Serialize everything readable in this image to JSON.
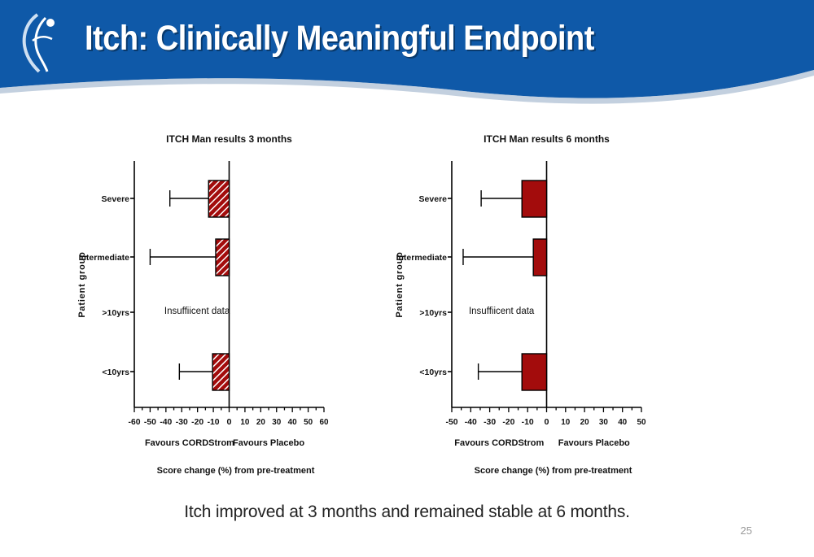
{
  "slide": {
    "title": "Itch: Clinically Meaningful Endpoint",
    "caption": "Itch improved at 3 months and remained stable at  6 months.",
    "page_number": "25",
    "colors": {
      "banner": "#0f59a8",
      "bar_fill": "#a30c0c",
      "hatch": "#ffffff",
      "text": "#111111"
    }
  },
  "chart_data": [
    {
      "type": "bar",
      "orientation": "horizontal",
      "title": "ITCH Man results 3 months",
      "ylabel": "Patient group",
      "xlabel": "Score change (%) from pre-treatment",
      "left_label": "Favours CORDStrom",
      "right_label": "Favours Placebo",
      "xlim": [
        -60,
        60
      ],
      "xticks": [
        -60,
        -50,
        -40,
        -30,
        -20,
        -10,
        0,
        10,
        20,
        30,
        40,
        50,
        60
      ],
      "minor_step": 5,
      "categories": [
        "Severe",
        "Intermediate",
        ">10yrs",
        "<10yrs"
      ],
      "values": [
        -13,
        -8.5,
        null,
        -10.5
      ],
      "error_low": [
        -37.5,
        -50,
        null,
        -31.5
      ],
      "fill_pattern": "hatched",
      "annotation": {
        "text": "Insuffiicent data",
        "category": ">10yrs"
      }
    },
    {
      "type": "bar",
      "orientation": "horizontal",
      "title": "ITCH Man results 6 months",
      "ylabel": "Patient group",
      "xlabel": "Score change (%) from pre-treatment",
      "left_label": "Favours CORDStrom",
      "right_label": "Favours Placebo",
      "xlim": [
        -50,
        50
      ],
      "xticks": [
        -50,
        -40,
        -30,
        -20,
        -10,
        0,
        10,
        20,
        30,
        40,
        50
      ],
      "minor_step": 5,
      "categories": [
        "Severe",
        "Intermediate",
        ">10yrs",
        "<10yrs"
      ],
      "values": [
        -13,
        -7,
        null,
        -13
      ],
      "error_low": [
        -34.5,
        -44,
        null,
        -36
      ],
      "fill_pattern": "solid",
      "annotation": {
        "text": "Insuffiicent data",
        "category": ">10yrs"
      }
    }
  ]
}
